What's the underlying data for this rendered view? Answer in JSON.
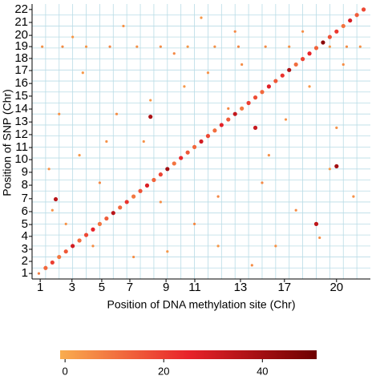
{
  "chart_data": {
    "type": "scatter",
    "xlabel": "Position of DNA methylation site (Chr)",
    "ylabel": "Position of SNP (Chr)",
    "xlim": [
      0,
      100
    ],
    "ylim": [
      0,
      100
    ],
    "xticks": [
      {
        "value": 2.4,
        "label": "1"
      },
      {
        "value": 11.8,
        "label": "3"
      },
      {
        "value": 20.6,
        "label": "5"
      },
      {
        "value": 28.9,
        "label": "7"
      },
      {
        "value": 39.6,
        "label": "9"
      },
      {
        "value": 48.1,
        "label": "11"
      },
      {
        "value": 61.6,
        "label": "13"
      },
      {
        "value": 74.6,
        "label": "17"
      },
      {
        "value": 90.0,
        "label": "20"
      }
    ],
    "yticks": [
      {
        "value": 2.0,
        "label": "1"
      },
      {
        "value": 6.4,
        "label": "2"
      },
      {
        "value": 10.8,
        "label": "3"
      },
      {
        "value": 15.5,
        "label": "4"
      },
      {
        "value": 19.8,
        "label": "5"
      },
      {
        "value": 24.5,
        "label": "6"
      },
      {
        "value": 29.2,
        "label": "7"
      },
      {
        "value": 34.1,
        "label": "8"
      },
      {
        "value": 38.8,
        "label": "9"
      },
      {
        "value": 43.4,
        "label": "10"
      },
      {
        "value": 47.8,
        "label": "11"
      },
      {
        "value": 52.5,
        "label": "12"
      },
      {
        "value": 57.1,
        "label": "13"
      },
      {
        "value": 61.8,
        "label": "14"
      },
      {
        "value": 66.5,
        "label": "15"
      },
      {
        "value": 71.1,
        "label": "16"
      },
      {
        "value": 75.8,
        "label": "17"
      },
      {
        "value": 80.2,
        "label": "18"
      },
      {
        "value": 84.5,
        "label": "19"
      },
      {
        "value": 88.6,
        "label": "20"
      },
      {
        "value": 93.3,
        "label": "21"
      },
      {
        "value": 98.0,
        "label": "22"
      }
    ],
    "xgrid": [
      4,
      8,
      12,
      16,
      20,
      24,
      28,
      32,
      36,
      40,
      44,
      48,
      52,
      56,
      60,
      64,
      68,
      72,
      76,
      80,
      84,
      88,
      92,
      96
    ],
    "ygrid": [
      4,
      8,
      12,
      16,
      20,
      24,
      28,
      32,
      36,
      40,
      44,
      48,
      52,
      56,
      60,
      64,
      68,
      72,
      76,
      80,
      84,
      88,
      92,
      96
    ],
    "grid_color": "#b9dce6",
    "colormap": [
      "#f9ad4f",
      "#e8232a",
      "#6e0000"
    ],
    "clim": [
      -1,
      51
    ],
    "cticks": [
      0,
      20,
      40
    ],
    "x": [
      2,
      4,
      6,
      8,
      10,
      12,
      14,
      16,
      18,
      20,
      22,
      24,
      26,
      28,
      30,
      32,
      34,
      36,
      38,
      40,
      42,
      44,
      46,
      48,
      50,
      52,
      54,
      56,
      58,
      60,
      62,
      64,
      66,
      68,
      70,
      72,
      74,
      76,
      78,
      80,
      82,
      84,
      86,
      88,
      90,
      92,
      94,
      96,
      98,
      3,
      9,
      16,
      23,
      31,
      38,
      46,
      54,
      61,
      69,
      76,
      88,
      93,
      97,
      10,
      25,
      40,
      55,
      70,
      85,
      15,
      33,
      60,
      78,
      5,
      45,
      65,
      90,
      20,
      50,
      30,
      95,
      12,
      58,
      72,
      38,
      82,
      8,
      48,
      62,
      27,
      88,
      18,
      75,
      42,
      35,
      92,
      6,
      55,
      68,
      22,
      80,
      14,
      52,
      7,
      35,
      66,
      90,
      84
    ],
    "y": [
      2,
      4,
      6,
      8,
      10,
      12,
      14,
      16,
      18,
      20,
      22,
      24,
      26,
      28,
      30,
      32,
      34,
      36,
      38,
      40,
      42,
      44,
      46,
      48,
      50,
      52,
      54,
      56,
      58,
      60,
      62,
      64,
      66,
      68,
      70,
      72,
      74,
      76,
      78,
      80,
      82,
      84,
      86,
      88,
      90,
      92,
      94,
      96,
      98,
      84.5,
      84.5,
      84.5,
      84.5,
      84.5,
      84.5,
      84.5,
      84.5,
      84.5,
      84.5,
      84.5,
      84.5,
      84.5,
      84.5,
      20,
      60,
      10,
      30,
      45,
      15,
      75,
      50,
      90,
      25,
      40,
      70,
      5,
      55,
      35,
      95,
      8,
      30,
      88,
      62,
      12,
      28,
      70,
      60,
      20,
      78,
      92,
      40,
      12,
      58,
      82,
      65,
      78,
      25,
      12,
      35,
      50,
      90,
      45,
      75,
      29,
      59,
      55,
      41,
      20
    ],
    "values": [
      8,
      12,
      20,
      9,
      15,
      30,
      11,
      18,
      25,
      10,
      14,
      35,
      12,
      22,
      9,
      16,
      28,
      13,
      19,
      40,
      10,
      24,
      15,
      12,
      30,
      18,
      11,
      26,
      14,
      33,
      9,
      20,
      17,
      12,
      27,
      15,
      22,
      38,
      11,
      19,
      25,
      13,
      45,
      16,
      21,
      10,
      29,
      14,
      18,
      4,
      5,
      3,
      6,
      4,
      5,
      3,
      4,
      6,
      5,
      4,
      3,
      5,
      4,
      4,
      5,
      3,
      6,
      4,
      5,
      3,
      4,
      6,
      5,
      4,
      3,
      5,
      4,
      6,
      3,
      5,
      4,
      3,
      6,
      4,
      5,
      3,
      4,
      6,
      5,
      4,
      3,
      5,
      4,
      6,
      3,
      5,
      4,
      3,
      6,
      4,
      5,
      3,
      4,
      35,
      38,
      32,
      40,
      34
    ]
  }
}
